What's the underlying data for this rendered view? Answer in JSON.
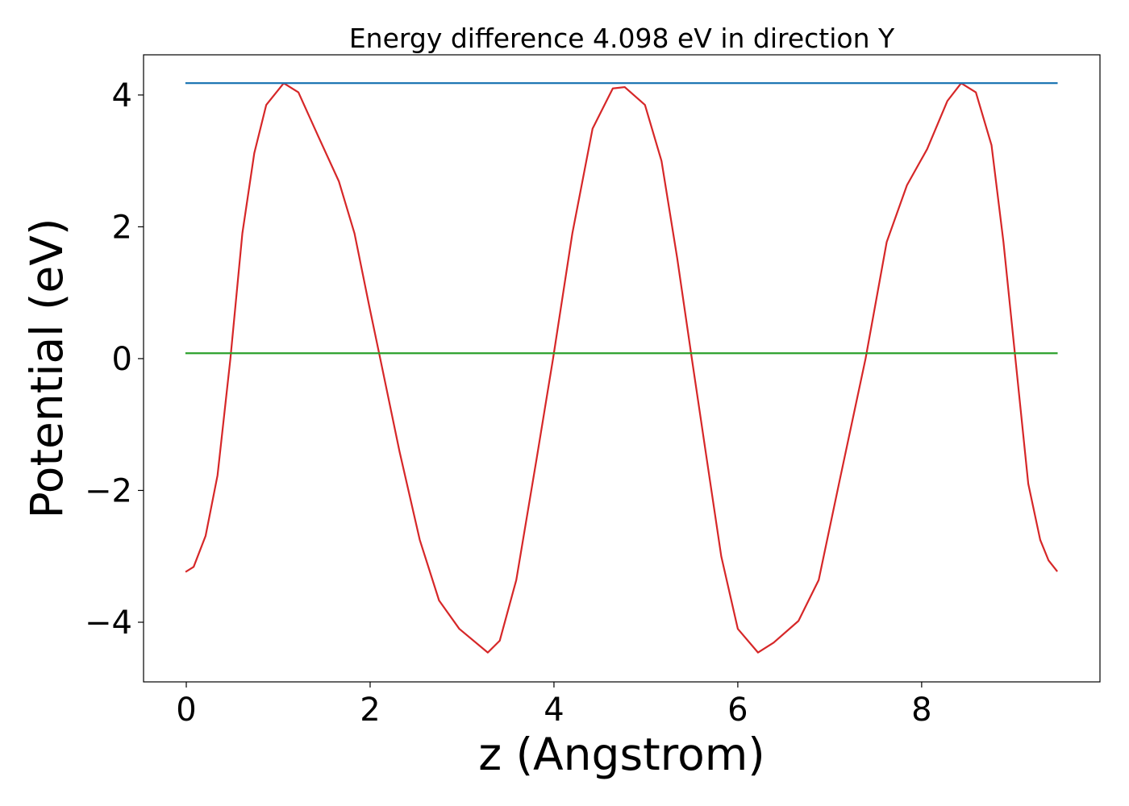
{
  "chart_data": {
    "type": "line",
    "title": "Energy difference 4.098 eV in direction Y",
    "xlabel": "z (Angstrom)",
    "ylabel": "Potential (eV)",
    "xlim": [
      -0.465,
      9.94
    ],
    "ylim": [
      -4.905,
      4.61
    ],
    "xticks": [
      0,
      2,
      4,
      6,
      8
    ],
    "yticks": [
      {
        "value": -4,
        "label": "−4"
      },
      {
        "value": -2,
        "label": "−2"
      },
      0,
      2,
      4
    ],
    "grid": false,
    "series": [
      {
        "color": "#d62728",
        "x": [
          0,
          0.08,
          0.21,
          0.34,
          0.48,
          0.61,
          0.74,
          0.87,
          1.06,
          1.22,
          1.44,
          1.66,
          1.83,
          1.99,
          2.11,
          2.32,
          2.54,
          2.75,
          2.97,
          3.28,
          3.41,
          3.59,
          3.81,
          3.99,
          4.2,
          4.42,
          4.64,
          4.77,
          4.99,
          5.17,
          5.34,
          5.5,
          5.65,
          5.82,
          6.0,
          6.22,
          6.39,
          6.66,
          6.88,
          7.1,
          7.39,
          7.62,
          7.84,
          8.06,
          8.28,
          8.43,
          8.59,
          8.76,
          8.89,
          9.02,
          9.16,
          9.29,
          9.38,
          9.47
        ],
        "values": [
          -3.23,
          -3.16,
          -2.69,
          -1.77,
          0,
          1.9,
          3.12,
          3.85,
          4.18,
          4.04,
          3.36,
          2.69,
          1.9,
          0.8,
          0,
          -1.41,
          -2.75,
          -3.67,
          -4.1,
          -4.46,
          -4.28,
          -3.36,
          -1.53,
          0,
          1.9,
          3.49,
          4.1,
          4.12,
          3.85,
          3.0,
          1.53,
          0,
          -1.41,
          -3.0,
          -4.1,
          -4.46,
          -4.31,
          -3.98,
          -3.36,
          -1.9,
          0,
          1.77,
          2.63,
          3.18,
          3.91,
          4.18,
          4.04,
          3.24,
          1.77,
          0,
          -1.9,
          -2.75,
          -3.06,
          -3.22
        ]
      },
      {
        "color": "#1f77b4",
        "x": [
          0,
          9.47
        ],
        "values": [
          4.18,
          4.18
        ]
      },
      {
        "color": "#2ca02c",
        "x": [
          0,
          9.47
        ],
        "values": [
          0.082,
          0.082
        ]
      }
    ]
  }
}
